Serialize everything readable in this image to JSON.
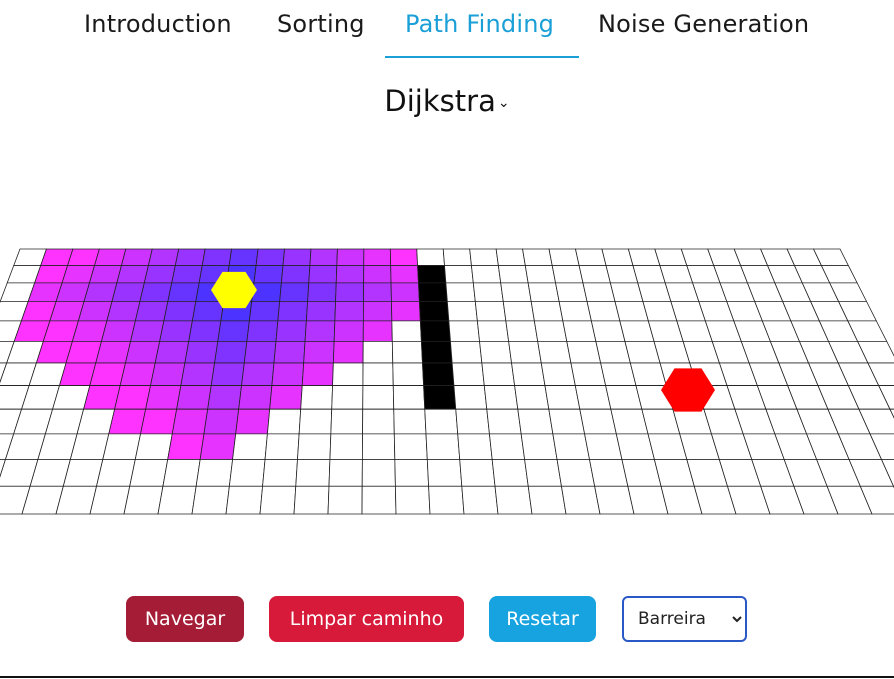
{
  "nav": {
    "tabs": [
      {
        "label": "Introduction",
        "active": false
      },
      {
        "label": "Sorting",
        "active": false
      },
      {
        "label": "Path Finding",
        "active": true
      },
      {
        "label": "Noise Generation",
        "active": false
      }
    ]
  },
  "algorithm": {
    "selected": "Dijkstra"
  },
  "controls": {
    "navigate_label": "Navegar",
    "clear_path_label": "Limpar caminho",
    "reset_label": "Resetar",
    "mode_selected": "Barreira"
  },
  "colors": {
    "accent": "#1a9fd6",
    "navigate": "#a51c36",
    "clear": "#d7193a",
    "reset": "#16a3e0",
    "start": "#ffff00",
    "goal": "#ff0000",
    "wall": "#000000",
    "visited_far": "#ff33ff",
    "visited_near": "#3333ff"
  },
  "grid": {
    "start_icon": "hexagon-start-icon",
    "goal_icon": "hexagon-goal-icon"
  }
}
